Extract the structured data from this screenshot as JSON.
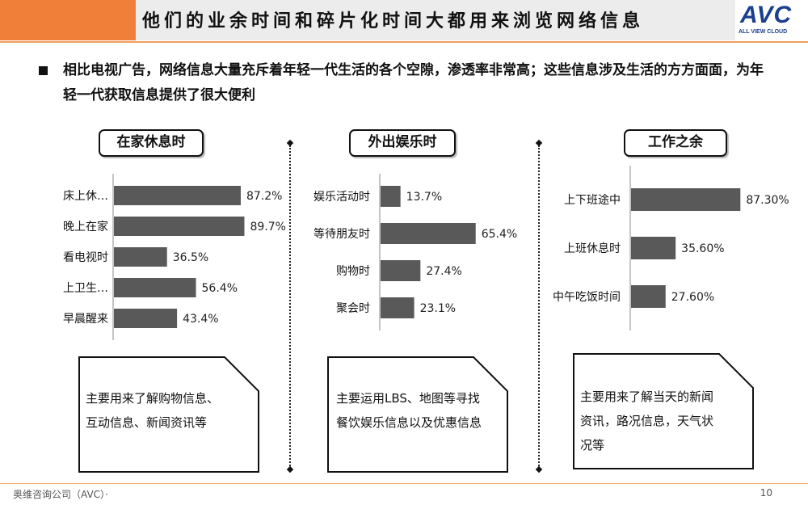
{
  "header": {
    "title": "他们的业余时间和碎片化时间大都用来浏览网络信息"
  },
  "logo": {
    "word": "AVC",
    "sub": "ALL VIEW CLOUD"
  },
  "bullet": {
    "text": "相比电视广告，网络信息大量充斥着年轻一代生活的各个空隙，渗透率非常高；这些信息涉及生活的方方面面，为年轻一代获取信息提供了很大便利"
  },
  "sections": [
    {
      "label": "在家休息时",
      "note": "主要用来了解购物信息、互动信息、新闻资讯等"
    },
    {
      "label": "外出娱乐时",
      "note": "主要运用LBS、地图等寻找餐饮娱乐信息以及优惠信息"
    },
    {
      "label": "工作之余",
      "note": "主要用来了解当天的新闻资讯，路况信息，天气状况等"
    }
  ],
  "chart_data": [
    {
      "type": "bar",
      "orientation": "horizontal",
      "categories": [
        "床上休…",
        "晚上在家",
        "看电视时",
        "上卫生…",
        "早晨醒来"
      ],
      "values": [
        87.2,
        89.7,
        36.5,
        56.4,
        43.4
      ],
      "value_labels": [
        "87.2%",
        "89.7%",
        "36.5%",
        "56.4%",
        "43.4%"
      ],
      "xlim": [
        0,
        100
      ],
      "bar_color": "#595959"
    },
    {
      "type": "bar",
      "orientation": "horizontal",
      "categories": [
        "娱乐活动时",
        "等待朋友时",
        "购物时",
        "聚会时"
      ],
      "values": [
        13.7,
        65.4,
        27.4,
        23.1
      ],
      "value_labels": [
        "13.7%",
        "65.4%",
        "27.4%",
        "23.1%"
      ],
      "xlim": [
        0,
        100
      ],
      "bar_color": "#595959"
    },
    {
      "type": "bar",
      "orientation": "horizontal",
      "categories": [
        "上下班途中",
        "上班休息时",
        "中午吃饭时间"
      ],
      "values": [
        87.3,
        35.6,
        27.6
      ],
      "value_labels": [
        "87.30%",
        "35.60%",
        "27.60%"
      ],
      "xlim": [
        0,
        100
      ],
      "bar_color": "#595959"
    }
  ],
  "footer": {
    "company": "奥维咨询公司（AVC）·",
    "page": "10"
  }
}
